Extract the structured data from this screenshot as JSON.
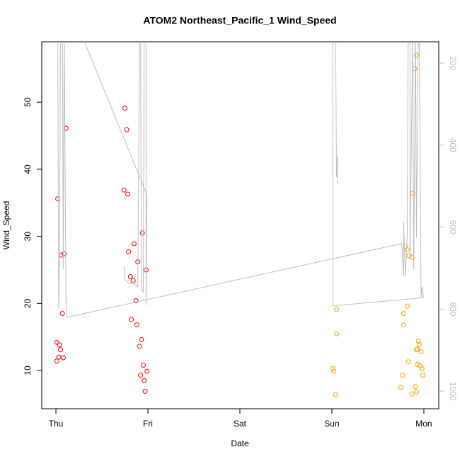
{
  "chart_data": {
    "type": "scatter",
    "title": "ATOM2 Northeast_Pacific_1 Wind_Speed",
    "xlabel": "Date",
    "ylabel": "Wind_Speed",
    "xlim": [
      -0.154,
      4.162
    ],
    "ylim": [
      4.3,
      59.0
    ],
    "y2lim": [
      1043,
      148
    ],
    "xticks": [
      {
        "value": 0,
        "label": "Thu"
      },
      {
        "value": 1,
        "label": "Fri"
      },
      {
        "value": 2,
        "label": "Sat"
      },
      {
        "value": 3,
        "label": "Sun"
      },
      {
        "value": 4,
        "label": "Mon"
      }
    ],
    "yticks": [
      10,
      20,
      30,
      40,
      50
    ],
    "y2ticks": [
      200,
      400,
      600,
      800,
      1000
    ],
    "y2_color": "#bebebe",
    "series": [
      {
        "type": "scatter",
        "color": "#ff0000",
        "x": [
          0.01,
          0.04,
          0.05,
          0.03,
          0.08,
          0.01,
          0.02,
          0.06,
          0.09,
          0.11,
          0.07,
          0.75,
          0.77,
          0.74,
          0.78,
          0.94,
          0.79,
          0.85,
          0.89,
          0.98,
          0.81,
          0.84,
          0.87,
          0.82,
          0.88,
          0.93,
          0.91,
          0.95,
          0.99,
          0.92,
          0.96,
          0.97
        ],
        "values": [
          14.2,
          13.8,
          13.1,
          12.0,
          11.9,
          11.4,
          35.6,
          27.2,
          27.4,
          46.1,
          18.5,
          49.1,
          45.9,
          36.9,
          36.3,
          30.5,
          27.7,
          28.9,
          26.2,
          25.0,
          24.0,
          23.4,
          20.4,
          17.6,
          16.8,
          14.6,
          13.6,
          10.8,
          9.9,
          9.3,
          8.5,
          6.9
        ]
      },
      {
        "type": "scatter",
        "color": "#ffa500",
        "x": [
          3.92,
          3.9,
          3.88,
          3.8,
          3.82,
          3.84,
          3.87,
          3.05,
          3.82,
          3.78,
          3.78,
          3.05,
          3.94,
          3.95,
          3.92,
          3.93,
          3.97,
          3.83,
          3.93,
          3.96,
          3.98,
          3.01,
          3.02,
          3.77,
          3.99,
          3.91,
          3.75,
          3.92,
          3.87,
          3.04
        ],
        "values": [
          57.0,
          55.0,
          36.4,
          28.5,
          28.0,
          27.1,
          26.9,
          19.1,
          19.6,
          18.5,
          16.8,
          15.5,
          14.4,
          13.9,
          13.1,
          13.2,
          12.8,
          11.3,
          10.9,
          10.7,
          10.3,
          10.3,
          9.9,
          9.3,
          9.3,
          7.6,
          7.5,
          6.8,
          6.5,
          6.4
        ]
      },
      {
        "type": "line",
        "axis": "y2",
        "color": "#bebebe",
        "x": [
          -0.01,
          0.02,
          0.03,
          0.04,
          0.05,
          0.07,
          0.08,
          0.09,
          0.11,
          0.12,
          3.76,
          3.78,
          3.78,
          3.8,
          3.82,
          3.83,
          3.85,
          3.85,
          3.88,
          3.89,
          3.91,
          3.92,
          3.94,
          3.95,
          3.97,
          3.98,
          4.0,
          3.01,
          3.01,
          3.04,
          3.05,
          3.06,
          3.06,
          null,
          0.25,
          0.99,
          0.98,
          0.98,
          0.96,
          0.95,
          0.93,
          0.92,
          0.91,
          0.89,
          0.85,
          0.79,
          0.75,
          0.74
        ],
        "values": [
          115,
          115,
          798,
          668,
          115,
          115,
          703,
          115,
          789,
          820,
          640,
          720,
          587,
          720,
          616,
          115,
          115,
          677,
          115,
          703,
          115,
          625,
          115,
          115,
          772,
          746,
          772,
          792,
          115,
          115,
          478,
          426,
          495,
          null,
          115,
          521,
          789,
          115,
          115,
          758,
          754,
          115,
          115,
          746,
          737,
          737,
          728,
          694
        ]
      }
    ]
  }
}
